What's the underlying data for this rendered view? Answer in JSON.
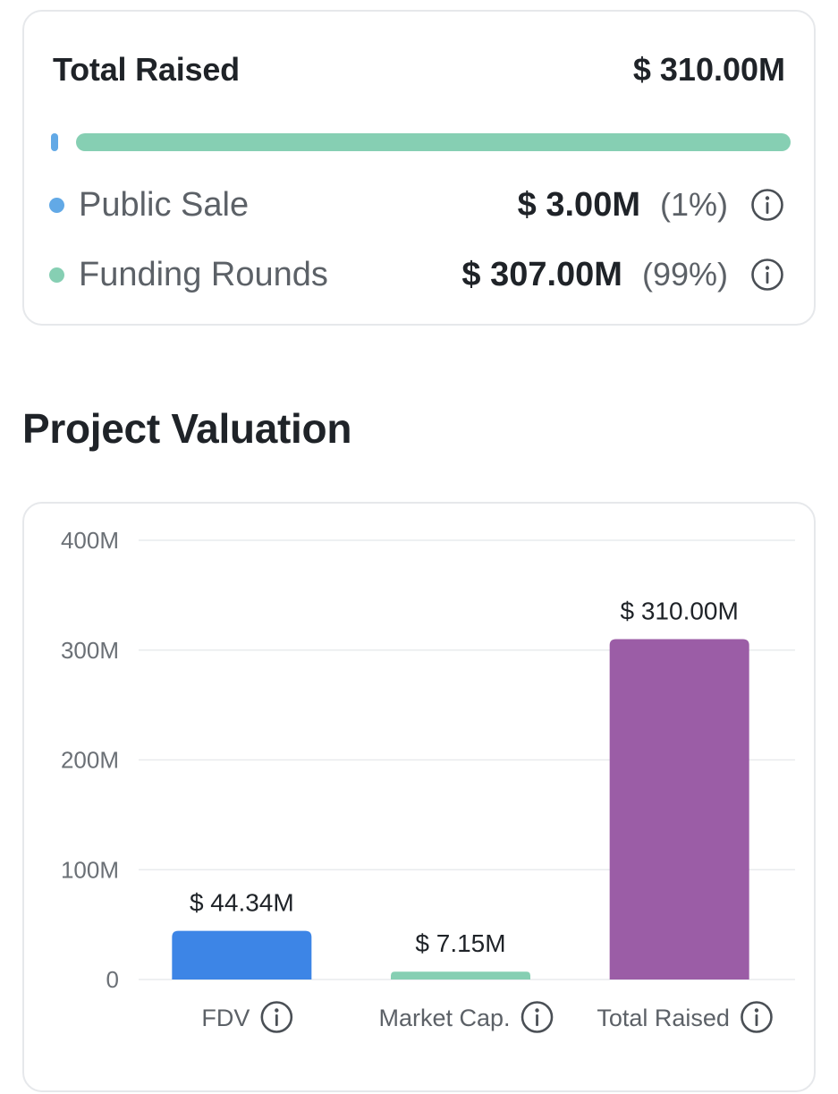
{
  "total_raised_card": {
    "title": "Total Raised",
    "total": "$ 310.00M",
    "items": [
      {
        "label": "Public Sale",
        "amount": "$ 3.00M",
        "percent": "(1%)",
        "color": "#62a9e6",
        "share": 0.01
      },
      {
        "label": "Funding Rounds",
        "amount": "$ 307.00M",
        "percent": "(99%)",
        "color": "#86cfb3",
        "share": 0.99
      }
    ]
  },
  "valuation": {
    "title": "Project Valuation"
  },
  "chart_data": {
    "type": "bar",
    "title": "Project Valuation",
    "categories": [
      "FDV",
      "Market Cap.",
      "Total Raised"
    ],
    "values": [
      44.34,
      7.15,
      310.0
    ],
    "value_unit": "M USD",
    "data_labels": [
      "$ 44.34M",
      "$ 7.15M",
      "$ 310.00M"
    ],
    "colors": [
      "#3d85e6",
      "#86cfb3",
      "#9b5da6"
    ],
    "ylim": [
      0,
      400
    ],
    "yticks": [
      0,
      100,
      200,
      300,
      400
    ],
    "ytick_labels": [
      "0",
      "100M",
      "200M",
      "300M",
      "400M"
    ],
    "grid": true,
    "xlabel": "",
    "ylabel": ""
  }
}
